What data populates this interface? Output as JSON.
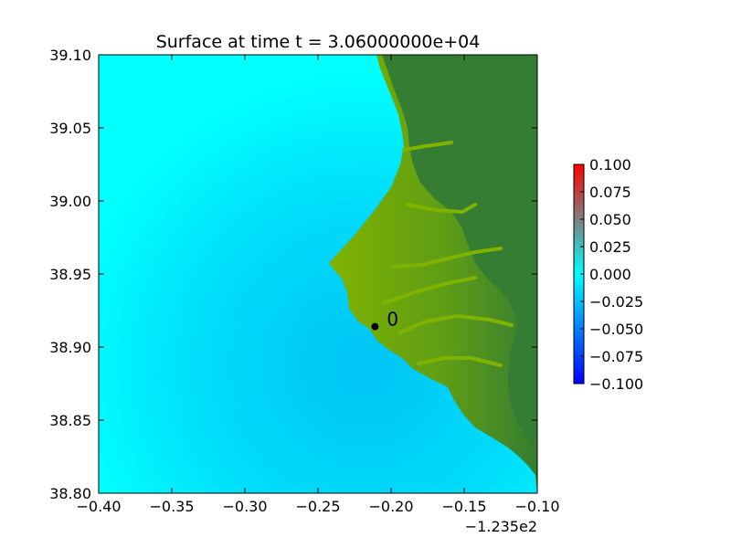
{
  "chart_data": {
    "type": "heatmap",
    "title": "Surface at time t = 3.06000000e+04",
    "xlabel": "",
    "ylabel": "",
    "x_ticks": [
      -0.4,
      -0.35,
      -0.3,
      -0.25,
      -0.2,
      -0.15,
      -0.1
    ],
    "x_tick_labels": [
      "−0.40",
      "−0.35",
      "−0.30",
      "−0.25",
      "−0.20",
      "−0.15",
      "−0.10"
    ],
    "x_offset_label": "−1.235e2",
    "y_ticks": [
      38.8,
      38.85,
      38.9,
      38.95,
      39.0,
      39.05,
      39.1
    ],
    "y_tick_labels": [
      "38.80",
      "38.85",
      "38.90",
      "38.95",
      "39.00",
      "39.05",
      "39.10"
    ],
    "xlim": [
      -0.4,
      -0.1
    ],
    "ylim": [
      38.8,
      39.1
    ],
    "gauge": {
      "label": "0",
      "x": -0.211,
      "y": 38.914
    },
    "colorbar": {
      "range": [
        -0.1,
        0.1
      ],
      "ticks": [
        0.1,
        0.075,
        0.05,
        0.025,
        0.0,
        -0.025,
        -0.05,
        -0.075,
        -0.1
      ],
      "tick_labels": [
        "0.100",
        "0.075",
        "0.050",
        "0.025",
        "0.000",
        "−0.025",
        "−0.050",
        "−0.075",
        "−0.100"
      ]
    },
    "colors": {
      "water_light": "#00ffff",
      "water_deep": "#00c4f5",
      "land_low": "#80b300",
      "land_high": "#357d32",
      "colorbar_top": "#ff0000",
      "colorbar_mid": "#00ffff",
      "colorbar_bottom": "#0000ff"
    },
    "grid": false,
    "legend": "colorbar-right"
  }
}
